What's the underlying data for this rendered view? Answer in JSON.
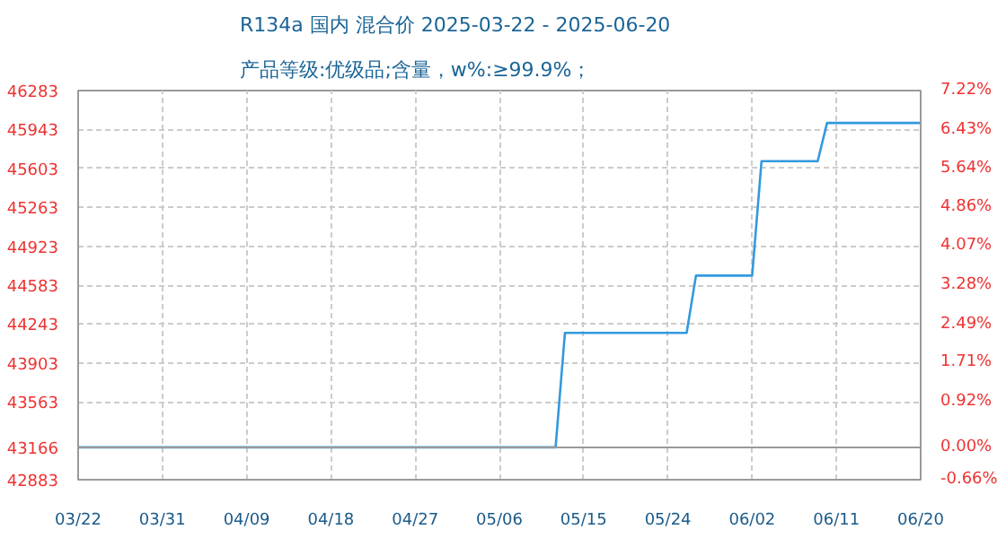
{
  "chart_data": {
    "type": "line",
    "title": "R134a 国内 混合价 2025-03-22 - 2025-06-20",
    "subtitle": "产品等级:优级品;含量，w%:≥99.9%；",
    "x": [
      "2025-03-22",
      "2025-05-12",
      "2025-05-13",
      "2025-05-26",
      "2025-05-27",
      "2025-06-02",
      "2025-06-03",
      "2025-06-09",
      "2025-06-10",
      "2025-06-20"
    ],
    "series": [
      {
        "color": "#3399dd",
        "values": [
          43166,
          43166,
          44166,
          44166,
          44666,
          44666,
          45666,
          45666,
          46000,
          46000
        ]
      }
    ],
    "xlim": [
      "2025-03-22",
      "2025-06-20"
    ],
    "xticks": [
      {
        "value": "2025-03-22",
        "label": "03/22"
      },
      {
        "value": "2025-03-31",
        "label": "03/31"
      },
      {
        "value": "2025-04-09",
        "label": "04/09"
      },
      {
        "value": "2025-04-18",
        "label": "04/18"
      },
      {
        "value": "2025-04-27",
        "label": "04/27"
      },
      {
        "value": "2025-05-06",
        "label": "05/06"
      },
      {
        "value": "2025-05-15",
        "label": "05/15"
      },
      {
        "value": "2025-05-24",
        "label": "05/24"
      },
      {
        "value": "2025-06-02",
        "label": "06/02"
      },
      {
        "value": "2025-06-11",
        "label": "06/11"
      },
      {
        "value": "2025-06-20",
        "label": "06/20"
      }
    ],
    "ylim": [
      42883,
      46283
    ],
    "yticks": [
      42883,
      43166,
      43563,
      43903,
      44243,
      44583,
      44923,
      45263,
      45603,
      45943,
      46283
    ],
    "y2lim": [
      -0.66,
      7.22
    ],
    "y2ticks": [
      {
        "value": -0.66,
        "label": "-0.66%"
      },
      {
        "value": 0,
        "label": "0.00%"
      },
      {
        "value": 0.92,
        "label": "0.92%"
      },
      {
        "value": 1.71,
        "label": "1.71%"
      },
      {
        "value": 2.49,
        "label": "2.49%"
      },
      {
        "value": 3.28,
        "label": "3.28%"
      },
      {
        "value": 4.07,
        "label": "4.07%"
      },
      {
        "value": 4.86,
        "label": "4.86%"
      },
      {
        "value": 5.64,
        "label": "5.64%"
      },
      {
        "value": 6.43,
        "label": "6.43%"
      },
      {
        "value": 7.22,
        "label": "7.22%"
      }
    ],
    "ref_lines": [
      {
        "axis": "y",
        "value": 43166,
        "color": "#999999",
        "line_style": "solid"
      }
    ],
    "grid": true,
    "line_style": "solid",
    "marker": "none"
  }
}
